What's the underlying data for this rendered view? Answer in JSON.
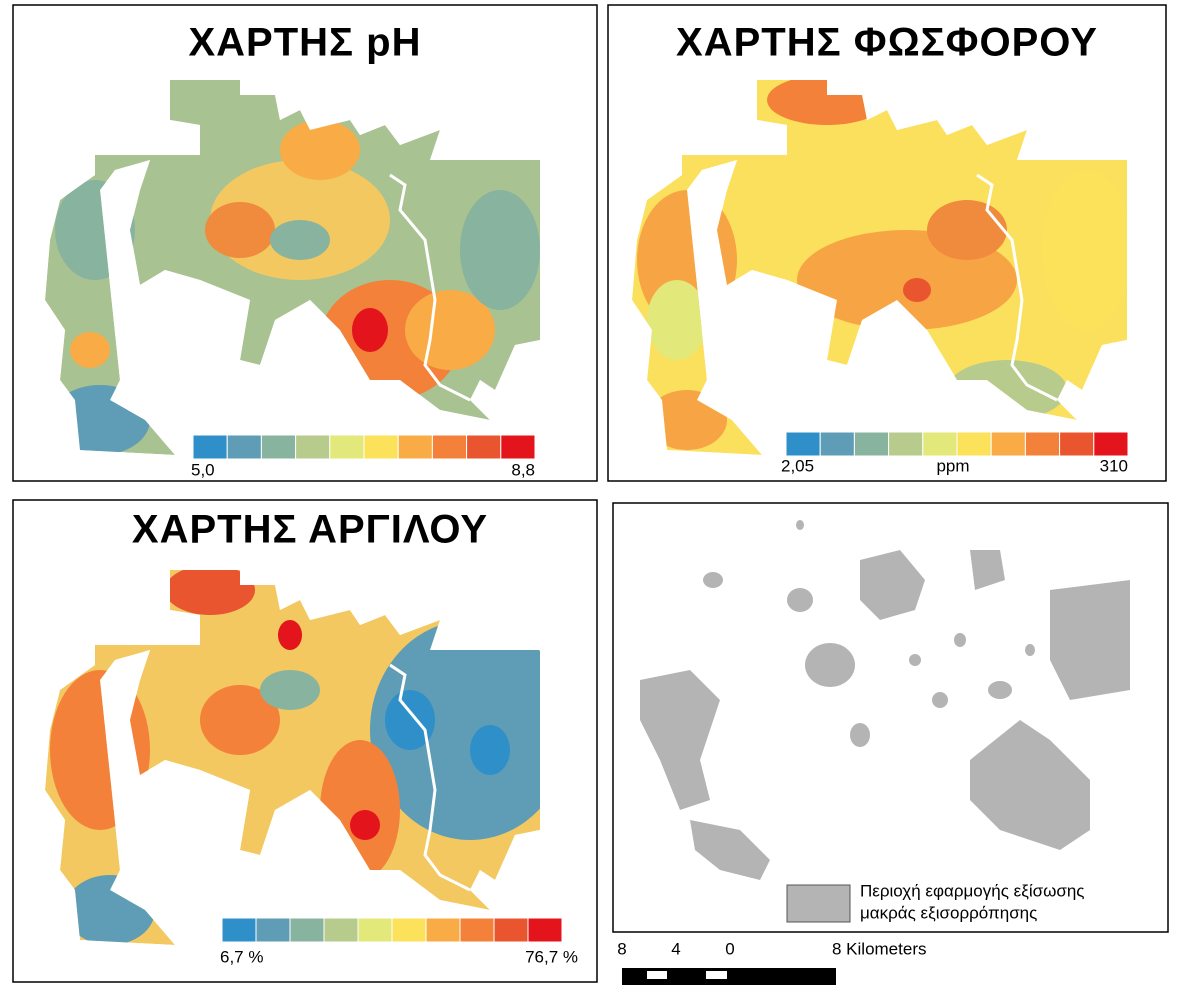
{
  "panels": [
    {
      "title": "ΧΑΡΤΗΣ pH",
      "legend": {
        "min": "5,0",
        "max": "8,8"
      }
    },
    {
      "title": "ΧΑΡΤΗΣ ΦΩΣΦΟΡΟΥ",
      "legend": {
        "min": "2,05",
        "unit": "ppm",
        "max": "310"
      }
    },
    {
      "title": "ΧΑΡΤΗΣ ΑΡΓΙΛΟΥ",
      "legend": {
        "min": "6,7 %",
        "max": "76,7 %"
      }
    },
    {
      "legend": {
        "label_lines": [
          "Περιοχή εφαρμογής εξίσωσης",
          "μακράς εξισορρόπησης"
        ]
      }
    }
  ],
  "scale_bar": {
    "labels": [
      "8",
      "4",
      "0",
      "8 Kilometers"
    ]
  },
  "color_ramp": [
    "#2f8fc9",
    "#5e9db5",
    "#88b39e",
    "#b7cb8c",
    "#e2e97a",
    "#fce25a",
    "#f9ac45",
    "#f38139",
    "#e8552e",
    "#e3141c"
  ]
}
